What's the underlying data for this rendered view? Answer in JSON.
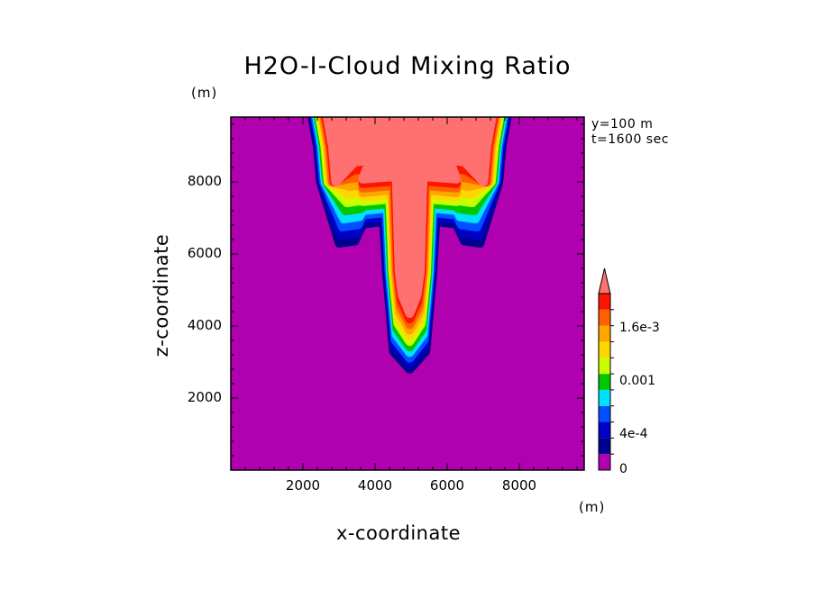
{
  "chart_data": {
    "type": "heatmap",
    "title": "H2O-I-Cloud Mixing Ratio",
    "xlabel": "x-coordinate",
    "ylabel": "z-coordinate",
    "x_unit": "(m)",
    "y_unit": "(m)",
    "xlim": [
      0,
      9800
    ],
    "ylim": [
      0,
      9800
    ],
    "x_ticks": [
      2000,
      4000,
      6000,
      8000
    ],
    "y_ticks": [
      2000,
      4000,
      6000,
      8000
    ],
    "x_tick_labels": [
      "2000",
      "4000",
      "6000",
      "8000"
    ],
    "y_tick_labels": [
      "2000",
      "4000",
      "6000",
      "8000"
    ],
    "annotations": [
      "y=100 m",
      "t=1600 sec"
    ],
    "colorbar": {
      "min": 0,
      "max": 0.002,
      "step": 0.0002,
      "extend": "max",
      "tick_values": [
        0,
        0.0004,
        0.001,
        0.0016
      ],
      "tick_labels": [
        "0",
        "4e-4",
        "0.001",
        "1.6e-3"
      ],
      "colors": [
        "#b000b0",
        "#000090",
        "#0000c8",
        "#0050ff",
        "#00e0ff",
        "#00c800",
        "#c8ff00",
        "#ffd700",
        "#ffa500",
        "#ff6000",
        "#ff1400",
        "#ff7070"
      ]
    },
    "contour_levels": [
      {
        "level": 0.0002,
        "color": "#000090"
      },
      {
        "level": 0.0004,
        "color": "#0000c8"
      },
      {
        "level": 0.0006,
        "color": "#0050ff"
      },
      {
        "level": 0.0008,
        "color": "#00e0ff"
      },
      {
        "level": 0.001,
        "color": "#00c800"
      },
      {
        "level": 0.0012,
        "color": "#c8ff00"
      },
      {
        "level": 0.0014,
        "color": "#ffd700"
      },
      {
        "level": 0.0016,
        "color": "#ffa500"
      },
      {
        "level": 0.0018,
        "color": "#ff6000"
      },
      {
        "level": 0.002,
        "color": "#ff1400"
      },
      {
        "level": 0.0021,
        "color": "#ff7070"
      }
    ],
    "background_color": "#b000b0"
  }
}
